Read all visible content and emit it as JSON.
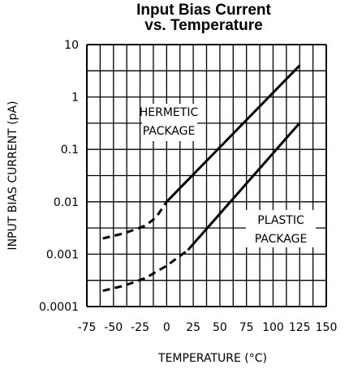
{
  "chart_data": {
    "type": "line",
    "title_lines": [
      "Input Bias Current",
      "vs. Temperature"
    ],
    "xlabel": "TEMPERATURE (°C)",
    "ylabel": "INPUT BIAS CURRENT (pA)",
    "x_ticks": [
      "-75",
      "-50",
      "-25",
      "0",
      "25",
      "50",
      "75",
      "100",
      "125",
      "150"
    ],
    "x_tick_values": [
      -75,
      -50,
      -25,
      0,
      25,
      50,
      75,
      100,
      125,
      150
    ],
    "y_ticks": [
      "0.0001",
      "0.001",
      "0.01",
      "0.1",
      "1",
      "10"
    ],
    "y_tick_values": [
      0.0001,
      0.001,
      0.01,
      0.1,
      1,
      10
    ],
    "xlim": [
      -75,
      150
    ],
    "ylim": [
      0.0001,
      10
    ],
    "y_scale": "log",
    "grid": true,
    "series": [
      {
        "name": "HERMETIC PACKAGE",
        "label_lines": [
          "HERMETIC",
          "PACKAGE"
        ],
        "dashed_points": [
          [
            -60,
            0.002
          ],
          [
            -40,
            0.0025
          ],
          [
            -20,
            0.0035
          ],
          [
            -10,
            0.005
          ],
          [
            0,
            0.01
          ]
        ],
        "solid_points": [
          [
            0,
            0.01
          ],
          [
            125,
            4
          ]
        ]
      },
      {
        "name": "PLASTIC PACKAGE",
        "label_lines": [
          "PLASTIC",
          "PACKAGE"
        ],
        "dashed_points": [
          [
            -60,
            0.0002
          ],
          [
            -40,
            0.00025
          ],
          [
            -20,
            0.00035
          ],
          [
            0,
            0.0006
          ],
          [
            20,
            0.0012
          ]
        ],
        "solid_points": [
          [
            20,
            0.0012
          ],
          [
            125,
            0.32
          ]
        ]
      }
    ]
  }
}
